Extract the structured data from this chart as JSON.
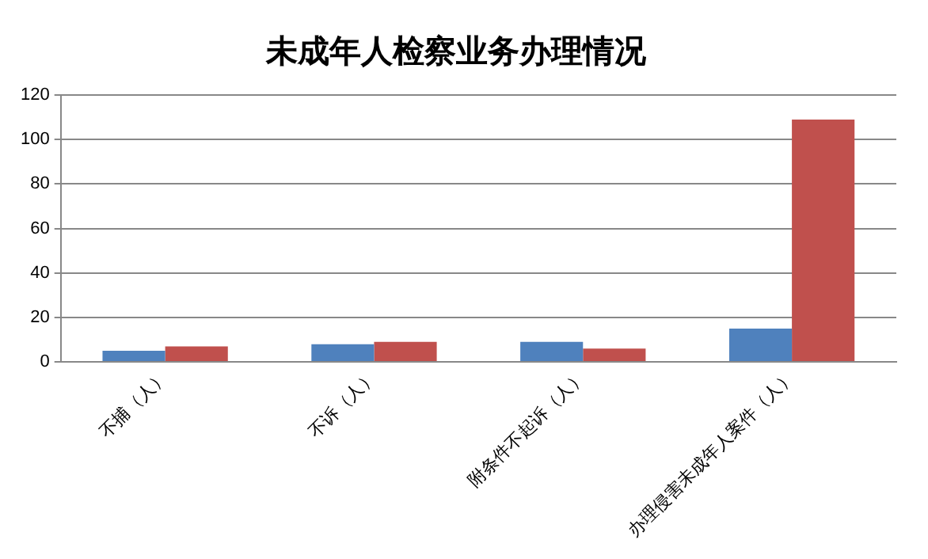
{
  "chart_data": {
    "type": "bar",
    "title": "未成年人检察业务办理情况",
    "categories": [
      "不捕（人）",
      "不诉（人）",
      "附条件不起诉（人）",
      "办理侵害未成年人案件（人）"
    ],
    "series": [
      {
        "color": "#4f81bd",
        "values": [
          5,
          8,
          9,
          15
        ]
      },
      {
        "color": "#c0504d",
        "values": [
          7,
          9,
          6,
          109
        ]
      }
    ],
    "ylim": [
      0,
      120
    ],
    "yticks": [
      0,
      20,
      40,
      60,
      80,
      100,
      120
    ],
    "grid": "y",
    "legend": false
  }
}
